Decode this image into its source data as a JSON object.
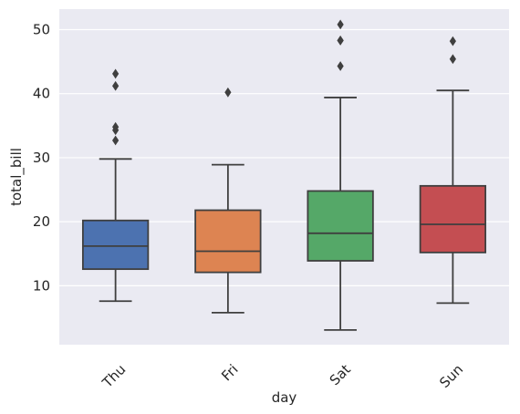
{
  "chart_data": {
    "type": "box",
    "xlabel": "day",
    "ylabel": "total_bill",
    "categories": [
      "Thu",
      "Fri",
      "Sat",
      "Sun"
    ],
    "ylim": [
      0.8,
      53.2
    ],
    "yticks": [
      10,
      20,
      30,
      40,
      50
    ],
    "grid": true,
    "legend": "none",
    "background": "#EAEAF2",
    "grid_color": "#FFFFFF",
    "line_color": "#3F3F3F",
    "boxes": [
      {
        "category": "Thu",
        "color": "#4C72B0",
        "whisker_low": 7.6,
        "q1": 12.6,
        "median": 16.2,
        "q3": 20.2,
        "whisker_high": 29.8,
        "outliers": [
          32.7,
          34.3,
          34.8,
          41.2,
          43.1
        ]
      },
      {
        "category": "Fri",
        "color": "#DD8452",
        "whisker_low": 5.8,
        "q1": 12.1,
        "median": 15.4,
        "q3": 21.8,
        "whisker_high": 28.9,
        "outliers": [
          40.2
        ]
      },
      {
        "category": "Sat",
        "color": "#55A868",
        "whisker_low": 3.1,
        "q1": 13.9,
        "median": 18.2,
        "q3": 24.8,
        "whisker_high": 39.4,
        "outliers": [
          44.3,
          48.3,
          48.3,
          50.8
        ]
      },
      {
        "category": "Sun",
        "color": "#C44E52",
        "whisker_low": 7.3,
        "q1": 15.2,
        "median": 19.6,
        "q3": 25.6,
        "whisker_high": 40.5,
        "outliers": [
          45.4,
          48.2
        ]
      }
    ]
  }
}
